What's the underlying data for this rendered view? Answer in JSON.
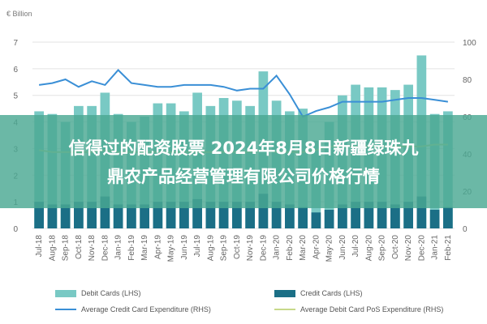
{
  "chart_data": {
    "type": "bar",
    "unit_left": "€ Billion",
    "categories": [
      "Jul-18",
      "Aug-18",
      "Sep-18",
      "Oct-18",
      "Nov-18",
      "Dec-18",
      "Jan-19",
      "Feb-19",
      "Mar-19",
      "Apr-19",
      "May-19",
      "Jun-19",
      "Jul-19",
      "Aug-19",
      "Sep-19",
      "Oct-19",
      "Nov-19",
      "Dec-19",
      "Jan-20",
      "Feb-20",
      "Mar-20",
      "Apr-20",
      "May-20",
      "Jun-20",
      "Jul-20",
      "Aug-20",
      "Sep-20",
      "Oct-20",
      "Nov-20",
      "Dec-20",
      "Jan-21",
      "Feb-21"
    ],
    "ylim_left": [
      0,
      7
    ],
    "yticks_left": [
      0,
      1,
      2,
      3,
      4,
      5,
      6,
      7
    ],
    "ylim_right": [
      0,
      100
    ],
    "yticks_right": [
      0,
      20,
      40,
      60,
      80,
      100
    ],
    "series": [
      {
        "name": "Debit Cards (LHS)",
        "kind": "bar",
        "axis": "left",
        "color": "#79c9c4",
        "values": [
          4.4,
          4.3,
          4.0,
          4.6,
          4.6,
          5.1,
          4.3,
          4.0,
          4.2,
          4.7,
          4.7,
          4.4,
          5.1,
          4.6,
          4.9,
          4.8,
          4.6,
          5.9,
          4.8,
          4.4,
          4.5,
          3.3,
          4.0,
          5.0,
          5.4,
          5.3,
          5.3,
          5.2,
          5.4,
          6.5,
          4.3,
          4.4
        ]
      },
      {
        "name": "Credit Cards (LHS)",
        "kind": "bar",
        "axis": "left",
        "color": "#1b6f86",
        "values": [
          1.0,
          0.9,
          0.9,
          1.0,
          1.0,
          1.2,
          0.9,
          0.9,
          0.9,
          1.0,
          1.0,
          1.0,
          1.1,
          1.0,
          1.0,
          1.0,
          1.0,
          1.3,
          1.0,
          0.9,
          0.8,
          0.6,
          0.7,
          0.9,
          1.0,
          1.0,
          1.0,
          0.9,
          1.0,
          1.2,
          0.7,
          0.8
        ]
      },
      {
        "name": "Average Credit Card Expenditure (RHS)",
        "kind": "line",
        "axis": "right",
        "color": "#3a8fd6",
        "values": [
          77,
          78,
          80,
          76,
          79,
          77,
          85,
          78,
          77,
          76,
          76,
          77,
          77,
          77,
          76,
          74,
          75,
          75,
          82,
          72,
          60,
          63,
          65,
          68,
          68,
          68,
          68,
          69,
          70,
          70,
          69,
          68
        ]
      },
      {
        "name": "Average Debit Card PoS Expenditure (RHS)",
        "kind": "line",
        "axis": "right",
        "color": "#c8d98a",
        "values": [
          42,
          41,
          41,
          41,
          41,
          42,
          41,
          41,
          41,
          41,
          41,
          41,
          41,
          41,
          41,
          41,
          41,
          42,
          41,
          41,
          41,
          42,
          44,
          44,
          44,
          44,
          44,
          44,
          44,
          44,
          45,
          45
        ]
      }
    ]
  },
  "banner": {
    "line1": "信得过的配资股票 2024年8月8日新疆绿珠九",
    "line2": "鼎农产品经营管理有限公司价格行情",
    "color": "#4aa893"
  }
}
